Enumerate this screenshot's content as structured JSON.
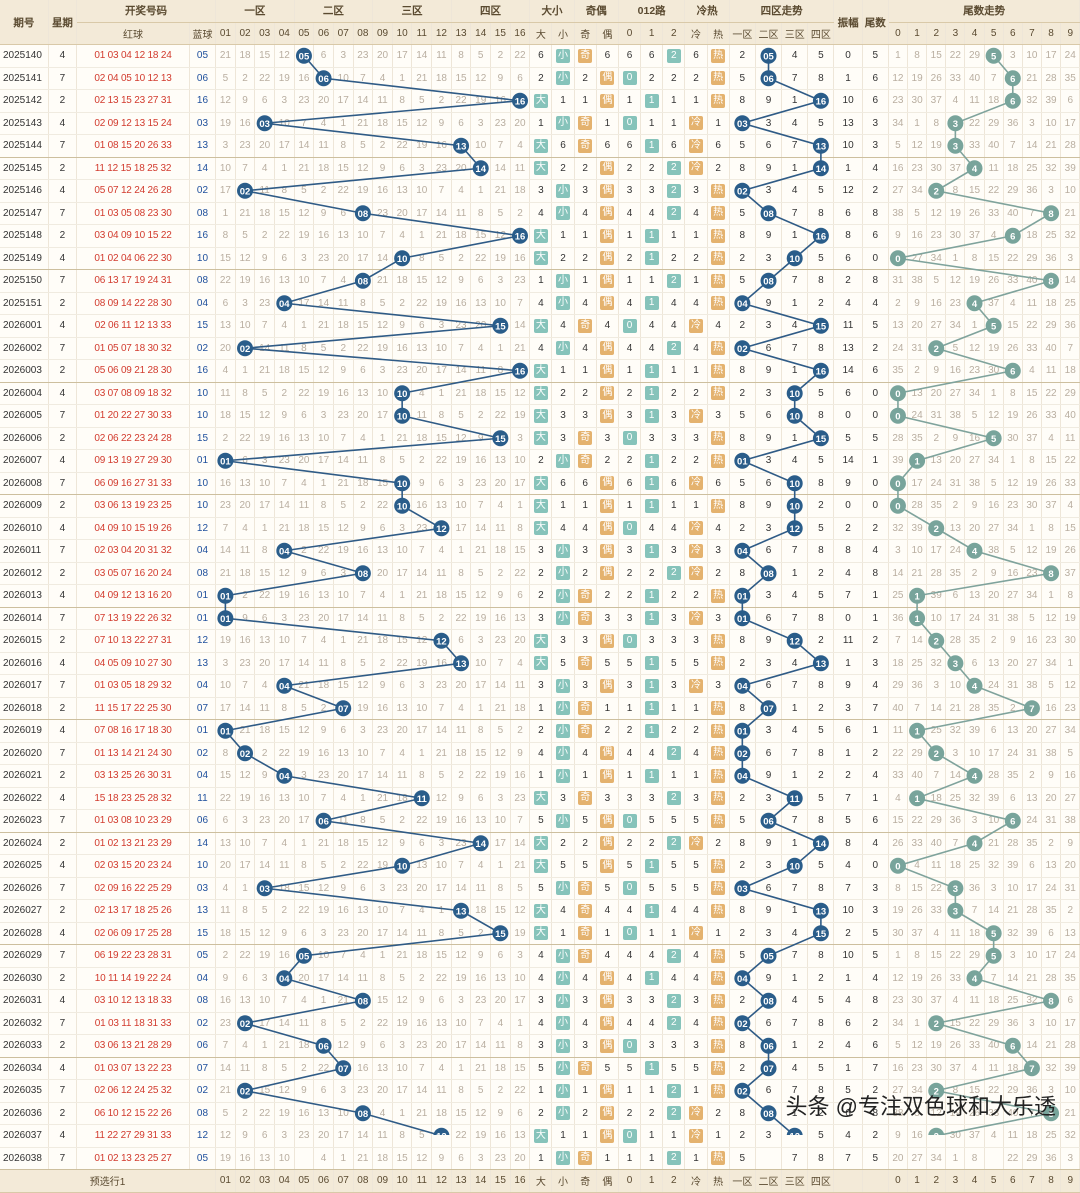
{
  "header": {
    "period": "期号",
    "week": "星期",
    "draw": "开奖号码",
    "red": "红球",
    "blue": "蓝球",
    "zone1": "一区",
    "zone2": "二区",
    "zone3": "三区",
    "zone4": "四区",
    "size": "大小",
    "big": "大",
    "small": "小",
    "parity": "奇偶",
    "odd": "奇",
    "even": "偶",
    "route": "012路",
    "r0": "0",
    "r1": "1",
    "r2": "2",
    "temp": "冷热",
    "cold": "冷",
    "hot": "热",
    "zone_trend": "四区走势",
    "zt": [
      "一区",
      "二区",
      "三区",
      "四区"
    ],
    "amp": "振幅",
    "tail": "尾数",
    "tail_trend": "尾数走势",
    "nums": [
      "01",
      "02",
      "03",
      "04",
      "05",
      "06",
      "07",
      "08",
      "09",
      "10",
      "11",
      "12",
      "13",
      "14",
      "15",
      "16"
    ],
    "digits": [
      "0",
      "1",
      "2",
      "3",
      "4",
      "5",
      "6",
      "7",
      "8",
      "9"
    ]
  },
  "footer": {
    "label": "预选行1"
  },
  "watermark": "头条 @专注双色球和大乐透",
  "colors": {
    "line": "#2f5b86",
    "tailLine": "#7fa39c",
    "ball": "#2a5d8a",
    "tailBall": "#78a49b",
    "green": "#86c3ba",
    "orange": "#e4b26e"
  },
  "rows": [
    {
      "p": "2025140",
      "w": "4",
      "red": "01 03 04 12 18 24",
      "b": "05",
      "t": "5"
    },
    {
      "p": "2025141",
      "w": "7",
      "red": "02 04 05 10 12 13",
      "b": "06",
      "t": "6"
    },
    {
      "p": "2025142",
      "w": "2",
      "red": "02 13 15 23 27 31",
      "b": "16",
      "t": "6"
    },
    {
      "p": "2025143",
      "w": "4",
      "red": "02 09 12 13 15 24",
      "b": "03",
      "t": "3"
    },
    {
      "p": "2025144",
      "w": "7",
      "red": "01 08 15 20 26 33",
      "b": "13",
      "t": "3"
    },
    {
      "p": "2025145",
      "w": "2",
      "red": "11 12 15 18 25 32",
      "b": "14",
      "t": "4"
    },
    {
      "p": "2025146",
      "w": "4",
      "red": "05 07 12 24 26 28",
      "b": "02",
      "t": "2"
    },
    {
      "p": "2025147",
      "w": "7",
      "red": "01 03 05 08 23 30",
      "b": "08",
      "t": "8"
    },
    {
      "p": "2025148",
      "w": "2",
      "red": "03 04 09 10 15 22",
      "b": "16",
      "t": "6"
    },
    {
      "p": "2025149",
      "w": "4",
      "red": "01 02 04 06 22 30",
      "b": "10",
      "t": "0"
    },
    {
      "p": "2025150",
      "w": "7",
      "red": "06 13 17 19 24 31",
      "b": "08",
      "t": "8"
    },
    {
      "p": "2025151",
      "w": "2",
      "red": "08 09 14 22 28 30",
      "b": "04",
      "t": "4"
    },
    {
      "p": "2026001",
      "w": "4",
      "red": "02 06 11 12 13 33",
      "b": "15",
      "t": "5"
    },
    {
      "p": "2026002",
      "w": "7",
      "red": "01 05 07 18 30 32",
      "b": "02",
      "t": "2"
    },
    {
      "p": "2026003",
      "w": "2",
      "red": "05 06 09 21 28 30",
      "b": "16",
      "t": "6"
    },
    {
      "p": "2026004",
      "w": "4",
      "red": "03 07 08 09 18 32",
      "b": "10",
      "t": "0"
    },
    {
      "p": "2026005",
      "w": "7",
      "red": "01 20 22 27 30 33",
      "b": "10",
      "t": "0"
    },
    {
      "p": "2026006",
      "w": "2",
      "red": "02 06 22 23 24 28",
      "b": "15",
      "t": "5"
    },
    {
      "p": "2026007",
      "w": "4",
      "red": "09 13 19 27 29 30",
      "b": "01",
      "t": "1"
    },
    {
      "p": "2026008",
      "w": "7",
      "red": "06 09 16 27 31 33",
      "b": "10",
      "t": "0"
    },
    {
      "p": "2026009",
      "w": "2",
      "red": "03 06 13 19 23 25",
      "b": "10",
      "t": "0"
    },
    {
      "p": "2026010",
      "w": "4",
      "red": "04 09 10 15 19 26",
      "b": "12",
      "t": "2"
    },
    {
      "p": "2026011",
      "w": "7",
      "red": "02 03 04 20 31 32",
      "b": "04",
      "t": "4"
    },
    {
      "p": "2026012",
      "w": "2",
      "red": "03 05 07 16 20 24",
      "b": "08",
      "t": "8"
    },
    {
      "p": "2026013",
      "w": "4",
      "red": "04 09 12 13 16 20",
      "b": "01",
      "t": "1"
    },
    {
      "p": "2026014",
      "w": "7",
      "red": "07 13 19 22 26 32",
      "b": "01",
      "t": "1"
    },
    {
      "p": "2026015",
      "w": "2",
      "red": "07 10 13 22 27 31",
      "b": "12",
      "t": "2"
    },
    {
      "p": "2026016",
      "w": "4",
      "red": "04 05 09 10 27 30",
      "b": "13",
      "t": "3"
    },
    {
      "p": "2026017",
      "w": "7",
      "red": "01 03 05 18 29 32",
      "b": "04",
      "t": "4"
    },
    {
      "p": "2026018",
      "w": "2",
      "red": "11 15 17 22 25 30",
      "b": "07",
      "t": "7"
    },
    {
      "p": "2026019",
      "w": "4",
      "red": "07 08 16 17 18 30",
      "b": "01",
      "t": "1"
    },
    {
      "p": "2026020",
      "w": "7",
      "red": "01 13 14 21 24 30",
      "b": "02",
      "t": "2"
    },
    {
      "p": "2026021",
      "w": "2",
      "red": "03 13 25 26 30 31",
      "b": "04",
      "t": "4"
    },
    {
      "p": "2026022",
      "w": "4",
      "red": "15 18 23 25 28 32",
      "b": "11",
      "t": "1"
    },
    {
      "p": "2026023",
      "w": "7",
      "red": "01 03 08 10 23 29",
      "b": "06",
      "t": "6"
    },
    {
      "p": "2026024",
      "w": "2",
      "red": "01 02 13 21 23 29",
      "b": "14",
      "t": "4"
    },
    {
      "p": "2026025",
      "w": "4",
      "red": "02 03 15 20 23 24",
      "b": "10",
      "t": "0"
    },
    {
      "p": "2026026",
      "w": "7",
      "red": "02 09 16 22 25 29",
      "b": "03",
      "t": "3"
    },
    {
      "p": "2026027",
      "w": "2",
      "red": "02 13 17 18 25 26",
      "b": "13",
      "t": "3"
    },
    {
      "p": "2026028",
      "w": "4",
      "red": "02 06 09 17 25 28",
      "b": "15",
      "t": "5"
    },
    {
      "p": "2026029",
      "w": "7",
      "red": "06 19 22 23 28 31",
      "b": "05",
      "t": "5"
    },
    {
      "p": "2026030",
      "w": "2",
      "red": "10 11 14 19 22 24",
      "b": "04",
      "t": "4"
    },
    {
      "p": "2026031",
      "w": "4",
      "red": "03 10 12 13 18 33",
      "b": "08",
      "t": "8"
    },
    {
      "p": "2026032",
      "w": "7",
      "red": "01 03 11 18 31 33",
      "b": "02",
      "t": "2"
    },
    {
      "p": "2026033",
      "w": "2",
      "red": "03 06 13 21 28 29",
      "b": "06",
      "t": "6"
    },
    {
      "p": "2026034",
      "w": "4",
      "red": "01 03 07 13 22 23",
      "b": "07",
      "t": "7"
    },
    {
      "p": "2026035",
      "w": "7",
      "red": "02 06 12 24 25 32",
      "b": "02",
      "t": "2"
    },
    {
      "p": "2026036",
      "w": "2",
      "red": "06 10 12 15 22 26",
      "b": "08",
      "t": "8"
    },
    {
      "p": "2026037",
      "w": "4",
      "red": "11 22 27 29 31 33",
      "b": "12",
      "t": "2"
    },
    {
      "p": "2026038",
      "w": "7",
      "red": "01 02 13 23 25 27",
      "b": "05",
      "t": "5"
    }
  ]
}
